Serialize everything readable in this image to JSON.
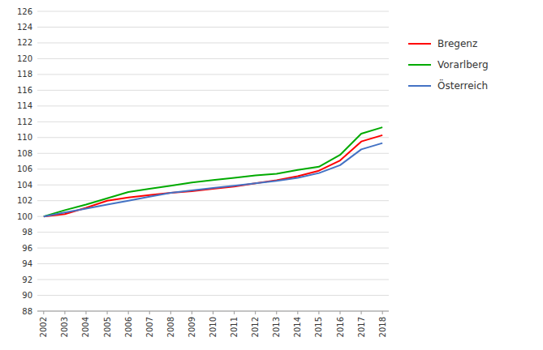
{
  "chart_data": {
    "type": "line",
    "x": [
      2002,
      2003,
      2004,
      2005,
      2006,
      2007,
      2008,
      2009,
      2010,
      2011,
      2012,
      2013,
      2014,
      2015,
      2016,
      2017,
      2018
    ],
    "xlim": [
      2001.7,
      2018.3
    ],
    "xticks": [
      2002,
      2003,
      2004,
      2005,
      2006,
      2007,
      2008,
      2009,
      2010,
      2011,
      2012,
      2013,
      2014,
      2015,
      2016,
      2017,
      2018
    ],
    "ylim": [
      88,
      126
    ],
    "yticks": [
      88,
      90,
      92,
      94,
      96,
      98,
      100,
      102,
      104,
      106,
      108,
      110,
      112,
      114,
      116,
      118,
      120,
      122,
      124,
      126
    ],
    "grid": true,
    "legend": "right",
    "series": [
      {
        "name": "Bregenz",
        "color": "#ff0000",
        "values": [
          100.0,
          100.3,
          101.1,
          102.0,
          102.4,
          102.7,
          103.0,
          103.2,
          103.5,
          103.8,
          104.2,
          104.6,
          105.1,
          105.8,
          107.1,
          109.5,
          110.3
        ]
      },
      {
        "name": "Vorarlberg",
        "color": "#00aa00",
        "values": [
          100.0,
          100.8,
          101.5,
          102.3,
          103.1,
          103.5,
          103.9,
          104.3,
          104.6,
          104.9,
          105.2,
          105.4,
          105.9,
          106.3,
          107.8,
          110.5,
          111.3
        ]
      },
      {
        "name": "Österreich",
        "color": "#4472c4",
        "values": [
          100.0,
          100.5,
          101.0,
          101.5,
          102.0,
          102.5,
          103.0,
          103.3,
          103.6,
          103.9,
          104.2,
          104.5,
          104.9,
          105.5,
          106.5,
          108.5,
          109.3
        ]
      }
    ]
  }
}
